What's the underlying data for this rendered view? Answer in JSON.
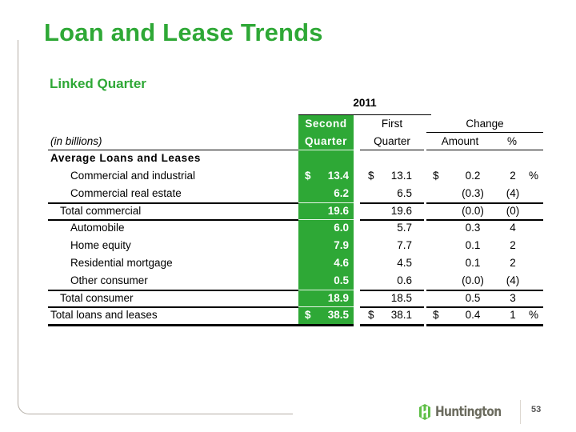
{
  "slide": {
    "title": "Loan and Lease Trends",
    "subtitle": "Linked Quarter",
    "page_number": "53",
    "brand": "Huntington",
    "accent_color": "#2ea836"
  },
  "table": {
    "year_header": "2011",
    "unit_label": "(in billions)",
    "columns": {
      "second_quarter": [
        "Second",
        "Quarter"
      ],
      "first_quarter": [
        "First",
        "Quarter"
      ],
      "change": "Change",
      "amount": "Amount",
      "percent": "%"
    },
    "section_header": "Average Loans and Leases",
    "rows": [
      {
        "label": "Commercial and industrial",
        "q2_prefix": "$",
        "q2": "13.4",
        "q1_prefix": "$",
        "q1": "13.1",
        "amt_prefix": "$",
        "amt": "0.2",
        "pct": "2",
        "pct_suffix": "%"
      },
      {
        "label": "Commercial real estate",
        "q2_prefix": "",
        "q2": "6.2",
        "q1_prefix": "",
        "q1": "6.5",
        "amt_prefix": "",
        "amt": "(0.3)",
        "pct": "(4)",
        "pct_suffix": ""
      },
      {
        "label": "Total commercial",
        "q2_prefix": "",
        "q2": "19.6",
        "q1_prefix": "",
        "q1": "19.6",
        "amt_prefix": "",
        "amt": "(0.0)",
        "pct": "(0)",
        "pct_suffix": ""
      },
      {
        "label": "Automobile",
        "q2_prefix": "",
        "q2": "6.0",
        "q1_prefix": "",
        "q1": "5.7",
        "amt_prefix": "",
        "amt": "0.3",
        "pct": "4",
        "pct_suffix": ""
      },
      {
        "label": "Home equity",
        "q2_prefix": "",
        "q2": "7.9",
        "q1_prefix": "",
        "q1": "7.7",
        "amt_prefix": "",
        "amt": "0.1",
        "pct": "2",
        "pct_suffix": ""
      },
      {
        "label": "Residential mortgage",
        "q2_prefix": "",
        "q2": "4.6",
        "q1_prefix": "",
        "q1": "4.5",
        "amt_prefix": "",
        "amt": "0.1",
        "pct": "2",
        "pct_suffix": ""
      },
      {
        "label": "Other consumer",
        "q2_prefix": "",
        "q2": "0.5",
        "q1_prefix": "",
        "q1": "0.6",
        "amt_prefix": "",
        "amt": "(0.0)",
        "pct": "(4)",
        "pct_suffix": ""
      },
      {
        "label": "Total consumer",
        "q2_prefix": "",
        "q2": "18.9",
        "q1_prefix": "",
        "q1": "18.5",
        "amt_prefix": "",
        "amt": "0.5",
        "pct": "3",
        "pct_suffix": ""
      },
      {
        "label": "Total loans and leases",
        "q2_prefix": "$",
        "q2": "38.5",
        "q1_prefix": "$",
        "q1": "38.1",
        "amt_prefix": "$",
        "amt": "0.4",
        "pct": "1",
        "pct_suffix": "%"
      }
    ]
  }
}
